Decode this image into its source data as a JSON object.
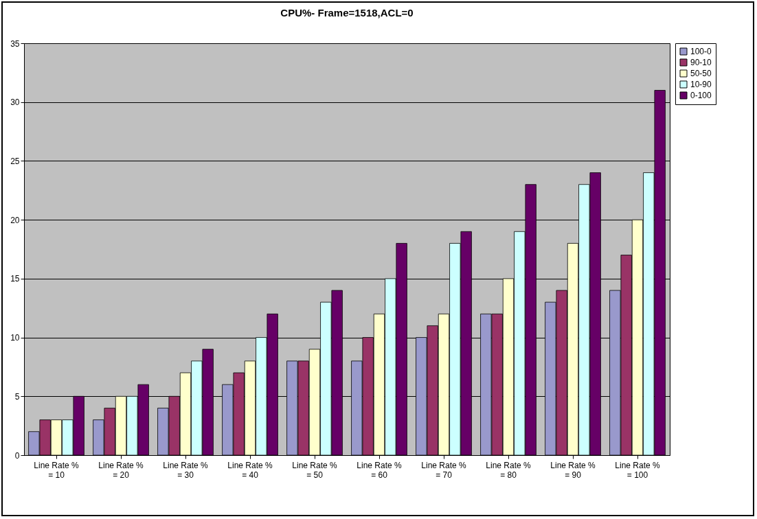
{
  "chart_data": {
    "type": "bar",
    "title": "CPU%- Frame=1518,ACL=0",
    "categories": [
      "Line Rate % = 10",
      "Line Rate % = 20",
      "Line Rate % = 30",
      "Line Rate % = 40",
      "Line Rate % = 50",
      "Line Rate % = 60",
      "Line Rate % = 70",
      "Line Rate % = 80",
      "Line Rate % = 90",
      "Line Rate % = 100"
    ],
    "series": [
      {
        "name": "100-0",
        "color": "#9999cc",
        "values": [
          2,
          3,
          4,
          6,
          8,
          8,
          10,
          12,
          13,
          14
        ]
      },
      {
        "name": "90-10",
        "color": "#993366",
        "values": [
          3,
          4,
          5,
          7,
          8,
          10,
          11,
          12,
          14,
          17
        ]
      },
      {
        "name": "50-50",
        "color": "#ffffcc",
        "values": [
          3,
          5,
          7,
          8,
          9,
          12,
          12,
          15,
          18,
          20
        ]
      },
      {
        "name": "10-90",
        "color": "#ccffff",
        "values": [
          3,
          5,
          8,
          10,
          13,
          15,
          18,
          19,
          23,
          24
        ]
      },
      {
        "name": "0-100",
        "color": "#660066",
        "values": [
          5,
          6,
          9,
          12,
          14,
          18,
          19,
          23,
          24,
          31
        ]
      }
    ],
    "ylim": [
      0,
      35
    ],
    "yticks": [
      0,
      5,
      10,
      15,
      20,
      25,
      30,
      35
    ],
    "grid": "y",
    "legend": "right"
  }
}
